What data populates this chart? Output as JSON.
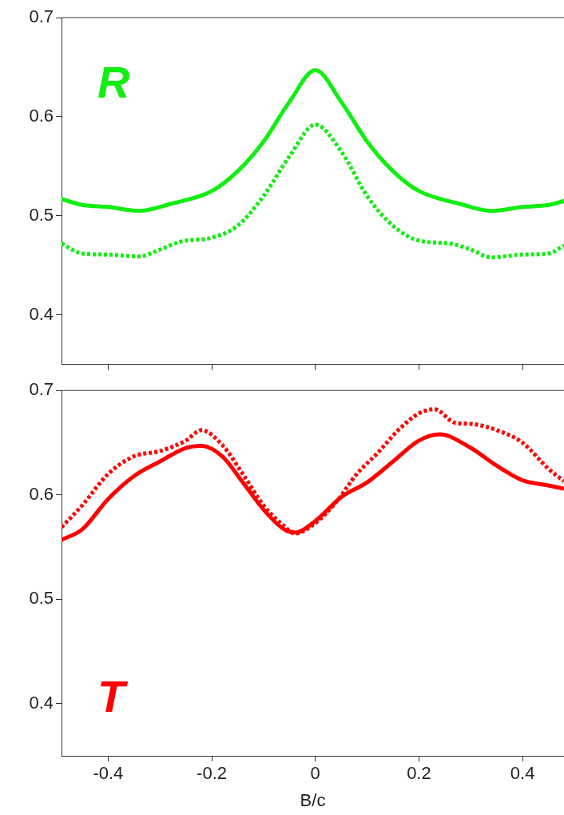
{
  "chart_data": [
    {
      "type": "line",
      "annotations": [
        "R"
      ],
      "xlim": [
        -0.49,
        0.48
      ],
      "ylim": [
        0.35,
        0.7
      ],
      "xticks": [
        -0.4,
        -0.2,
        0,
        0.2,
        0.4
      ],
      "yticks": [
        0.4,
        0.5,
        0.6,
        0.7
      ],
      "tick_labels": "y",
      "grid": false,
      "legend": false,
      "marker": "none",
      "series": [
        {
          "color": "#11ee11",
          "line_style": "solid",
          "x": [
            -0.49,
            -0.45,
            -0.4,
            -0.34,
            -0.28,
            -0.2,
            -0.15,
            -0.1,
            -0.05,
            0,
            0.05,
            0.1,
            0.15,
            0.2,
            0.28,
            0.34,
            0.4,
            0.45,
            0.48
          ],
          "values": [
            0.517,
            0.511,
            0.509,
            0.505,
            0.512,
            0.525,
            0.545,
            0.575,
            0.615,
            0.647,
            0.615,
            0.575,
            0.545,
            0.525,
            0.512,
            0.505,
            0.509,
            0.511,
            0.515
          ]
        },
        {
          "color": "#11ee11",
          "line_style": "dotted",
          "x": [
            -0.49,
            -0.45,
            -0.4,
            -0.34,
            -0.3,
            -0.26,
            -0.2,
            -0.15,
            -0.1,
            -0.05,
            0,
            0.05,
            0.1,
            0.15,
            0.2,
            0.26,
            0.3,
            0.34,
            0.4,
            0.45,
            0.48
          ],
          "values": [
            0.472,
            0.462,
            0.461,
            0.459,
            0.466,
            0.474,
            0.478,
            0.49,
            0.52,
            0.56,
            0.592,
            0.565,
            0.52,
            0.49,
            0.475,
            0.472,
            0.466,
            0.458,
            0.461,
            0.462,
            0.47
          ]
        }
      ]
    },
    {
      "type": "line",
      "annotations": [
        "T"
      ],
      "xlabel": "B/c",
      "xlim": [
        -0.49,
        0.48
      ],
      "ylim": [
        0.35,
        0.7
      ],
      "xticks": [
        -0.4,
        -0.2,
        0,
        0.2,
        0.4
      ],
      "yticks": [
        0.4,
        0.5,
        0.6,
        0.7
      ],
      "grid": false,
      "legend": false,
      "marker": "none",
      "series": [
        {
          "color": "#ff0000",
          "line_style": "solid",
          "x": [
            -0.49,
            -0.45,
            -0.4,
            -0.35,
            -0.3,
            -0.25,
            -0.22,
            -0.18,
            -0.14,
            -0.1,
            -0.06,
            -0.04,
            0,
            0.05,
            0.1,
            0.15,
            0.2,
            0.24,
            0.3,
            0.35,
            0.4,
            0.45,
            0.48
          ],
          "values": [
            0.557,
            0.567,
            0.596,
            0.618,
            0.632,
            0.645,
            0.647,
            0.637,
            0.612,
            0.586,
            0.567,
            0.564,
            0.575,
            0.598,
            0.612,
            0.632,
            0.652,
            0.658,
            0.645,
            0.628,
            0.614,
            0.609,
            0.606
          ]
        },
        {
          "color": "#ff0000",
          "line_style": "dotted",
          "x": [
            -0.49,
            -0.45,
            -0.4,
            -0.35,
            -0.3,
            -0.25,
            -0.22,
            -0.18,
            -0.14,
            -0.1,
            -0.06,
            -0.04,
            0,
            0.04,
            0.08,
            0.12,
            0.16,
            0.2,
            0.23,
            0.27,
            0.3,
            0.35,
            0.4,
            0.45,
            0.48
          ],
          "values": [
            0.569,
            0.59,
            0.62,
            0.637,
            0.642,
            0.652,
            0.662,
            0.648,
            0.62,
            0.59,
            0.57,
            0.563,
            0.573,
            0.593,
            0.62,
            0.64,
            0.662,
            0.678,
            0.682,
            0.669,
            0.668,
            0.662,
            0.65,
            0.625,
            0.613
          ]
        }
      ]
    }
  ]
}
